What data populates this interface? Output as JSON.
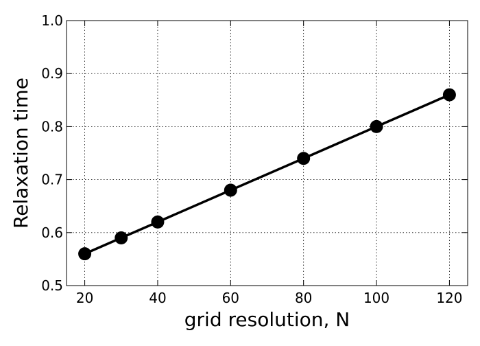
{
  "chart_data": {
    "type": "line",
    "title": "",
    "xlabel": "grid resolution, N",
    "ylabel": "Relaxation time",
    "xlim": [
      15,
      125
    ],
    "ylim": [
      0.5,
      1.0
    ],
    "xticks": [
      20,
      40,
      60,
      80,
      100,
      120
    ],
    "yticks": [
      0.5,
      0.6,
      0.7,
      0.8,
      0.9,
      1.0
    ],
    "xtick_labels": [
      "20",
      "40",
      "60",
      "80",
      "100",
      "120"
    ],
    "ytick_labels": [
      "0.5",
      "0.6",
      "0.7",
      "0.8",
      "0.9",
      "1.0"
    ],
    "grid": true,
    "grid_style": "dotted",
    "legend": "none",
    "series": [
      {
        "x": [
          20,
          30,
          40,
          60,
          80,
          100,
          120
        ],
        "y": [
          0.56,
          0.59,
          0.62,
          0.68,
          0.74,
          0.8,
          0.86
        ],
        "color": "#000000",
        "marker": "circle"
      }
    ]
  }
}
